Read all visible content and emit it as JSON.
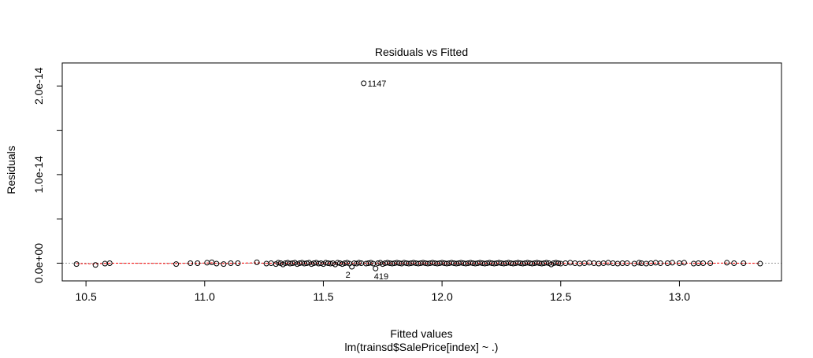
{
  "colors": {
    "points": "#000000",
    "smooth_line": "#ff0000",
    "reference_line": "#999999",
    "axes": "#000000",
    "background": "#ffffff"
  },
  "chart_data": {
    "type": "scatter",
    "title": "Residuals vs Fitted",
    "xlabel": "Fitted values",
    "subtitle": "lm(trainsd$SalePrice[index] ~ .)",
    "ylabel": "Residuals",
    "xlim": [
      10.4,
      13.43
    ],
    "ylim": [
      -2e-15,
      2.26e-14
    ],
    "x_ticks": [
      10.5,
      11.0,
      11.5,
      12.0,
      12.5,
      13.0
    ],
    "x_tick_labels": [
      "10.5",
      "11.0",
      "11.5",
      "12.0",
      "12.5",
      "13.0"
    ],
    "y_ticks": [
      0,
      5e-15,
      1e-14,
      1.5e-14,
      2e-14
    ],
    "y_tick_labels": [
      "0.0e+00",
      "",
      "1.0e-14",
      "",
      "2.0e-14"
    ],
    "grid": false,
    "legend": "none",
    "reference_line_y": 0,
    "outliers": [
      {
        "label": "1147",
        "x": 11.67,
        "y": 2.03e-14
      },
      {
        "label": "2",
        "x": 11.62,
        "y": -4e-16
      },
      {
        "label": "419",
        "x": 11.72,
        "y": -6e-16
      }
    ],
    "series": [
      {
        "points": [
          [
            10.46,
            -1e-16
          ],
          [
            10.54,
            -2e-16
          ],
          [
            10.58,
            -5e-17
          ],
          [
            10.6,
            0
          ],
          [
            10.88,
            -1e-16
          ],
          [
            10.94,
            0
          ],
          [
            10.97,
            0
          ],
          [
            11.01,
            5e-17
          ],
          [
            11.03,
            1e-16
          ],
          [
            11.05,
            -5e-17
          ],
          [
            11.08,
            -1e-16
          ],
          [
            11.11,
            0
          ],
          [
            11.14,
            0
          ],
          [
            11.22,
            1e-16
          ],
          [
            11.26,
            -5e-17
          ],
          [
            11.28,
            0
          ],
          [
            11.3,
            -1e-16
          ],
          [
            11.31,
            5e-17
          ],
          [
            11.32,
            0
          ],
          [
            11.33,
            -1.5e-16
          ],
          [
            11.34,
            0
          ],
          [
            11.35,
            5e-17
          ],
          [
            11.36,
            -5e-17
          ],
          [
            11.37,
            0
          ],
          [
            11.38,
            5e-17
          ],
          [
            11.39,
            -1e-16
          ],
          [
            11.4,
            0
          ],
          [
            11.41,
            5e-17
          ],
          [
            11.42,
            -5e-17
          ],
          [
            11.43,
            0
          ],
          [
            11.44,
            5e-17
          ],
          [
            11.45,
            -1e-16
          ],
          [
            11.46,
            0
          ],
          [
            11.47,
            5e-17
          ],
          [
            11.48,
            -5e-17
          ],
          [
            11.49,
            0
          ],
          [
            11.5,
            -1e-16
          ],
          [
            11.51,
            5e-17
          ],
          [
            11.52,
            0
          ],
          [
            11.53,
            -5e-17
          ],
          [
            11.54,
            0
          ],
          [
            11.55,
            -1.5e-16
          ],
          [
            11.56,
            5e-17
          ],
          [
            11.57,
            0
          ],
          [
            11.58,
            -1e-16
          ],
          [
            11.59,
            0
          ],
          [
            11.6,
            5e-17
          ],
          [
            11.61,
            -5e-17
          ],
          [
            11.63,
            0
          ],
          [
            11.64,
            -5e-17
          ],
          [
            11.65,
            5e-17
          ],
          [
            11.66,
            0
          ],
          [
            11.68,
            -5e-17
          ],
          [
            11.69,
            0
          ],
          [
            11.7,
            5e-17
          ],
          [
            11.71,
            -5e-17
          ],
          [
            11.73,
            0
          ],
          [
            11.74,
            5e-17
          ],
          [
            11.75,
            -1e-16
          ],
          [
            11.76,
            0
          ],
          [
            11.77,
            5e-17
          ],
          [
            11.78,
            0
          ],
          [
            11.79,
            -5e-17
          ],
          [
            11.8,
            0
          ],
          [
            11.81,
            5e-17
          ],
          [
            11.82,
            0
          ],
          [
            11.83,
            -5e-17
          ],
          [
            11.84,
            5e-17
          ],
          [
            11.85,
            0
          ],
          [
            11.86,
            -5e-17
          ],
          [
            11.87,
            0
          ],
          [
            11.88,
            5e-17
          ],
          [
            11.89,
            0
          ],
          [
            11.9,
            -5e-17
          ],
          [
            11.91,
            0
          ],
          [
            11.92,
            5e-17
          ],
          [
            11.93,
            0
          ],
          [
            11.94,
            -5e-17
          ],
          [
            11.95,
            0
          ],
          [
            11.96,
            5e-17
          ],
          [
            11.97,
            0
          ],
          [
            11.98,
            -5e-17
          ],
          [
            11.99,
            0
          ],
          [
            12.0,
            5e-17
          ],
          [
            12.01,
            0
          ],
          [
            12.02,
            -5e-17
          ],
          [
            12.03,
            0
          ],
          [
            12.04,
            5e-17
          ],
          [
            12.05,
            0
          ],
          [
            12.06,
            -5e-17
          ],
          [
            12.07,
            0
          ],
          [
            12.08,
            5e-17
          ],
          [
            12.09,
            0
          ],
          [
            12.1,
            -5e-17
          ],
          [
            12.11,
            0
          ],
          [
            12.12,
            5e-17
          ],
          [
            12.13,
            0
          ],
          [
            12.14,
            -5e-17
          ],
          [
            12.15,
            0
          ],
          [
            12.16,
            5e-17
          ],
          [
            12.17,
            0
          ],
          [
            12.18,
            -5e-17
          ],
          [
            12.19,
            0
          ],
          [
            12.2,
            5e-17
          ],
          [
            12.21,
            0
          ],
          [
            12.22,
            -5e-17
          ],
          [
            12.23,
            0
          ],
          [
            12.24,
            5e-17
          ],
          [
            12.25,
            0
          ],
          [
            12.26,
            -5e-17
          ],
          [
            12.27,
            0
          ],
          [
            12.28,
            5e-17
          ],
          [
            12.29,
            0
          ],
          [
            12.3,
            -5e-17
          ],
          [
            12.31,
            0
          ],
          [
            12.32,
            5e-17
          ],
          [
            12.33,
            0
          ],
          [
            12.34,
            -5e-17
          ],
          [
            12.35,
            0
          ],
          [
            12.36,
            5e-17
          ],
          [
            12.37,
            0
          ],
          [
            12.38,
            -5e-17
          ],
          [
            12.39,
            0
          ],
          [
            12.4,
            5e-17
          ],
          [
            12.41,
            0
          ],
          [
            12.42,
            -5e-17
          ],
          [
            12.43,
            0
          ],
          [
            12.44,
            5e-17
          ],
          [
            12.45,
            0
          ],
          [
            12.46,
            -1.5e-16
          ],
          [
            12.47,
            0
          ],
          [
            12.48,
            5e-17
          ],
          [
            12.49,
            0
          ],
          [
            12.5,
            -5e-17
          ],
          [
            12.52,
            0
          ],
          [
            12.54,
            5e-17
          ],
          [
            12.56,
            0
          ],
          [
            12.58,
            -5e-17
          ],
          [
            12.6,
            0
          ],
          [
            12.62,
            5e-17
          ],
          [
            12.64,
            0
          ],
          [
            12.66,
            -5e-17
          ],
          [
            12.68,
            0
          ],
          [
            12.7,
            5e-17
          ],
          [
            12.72,
            0
          ],
          [
            12.74,
            -5e-17
          ],
          [
            12.76,
            0
          ],
          [
            12.78,
            0
          ],
          [
            12.81,
            -5e-17
          ],
          [
            12.83,
            5e-17
          ],
          [
            12.84,
            0
          ],
          [
            12.86,
            -5e-17
          ],
          [
            12.88,
            0
          ],
          [
            12.9,
            5e-17
          ],
          [
            12.92,
            0
          ],
          [
            12.95,
            0
          ],
          [
            12.97,
            5e-17
          ],
          [
            13.0,
            0
          ],
          [
            13.02,
            5e-17
          ],
          [
            13.06,
            -5e-17
          ],
          [
            13.08,
            0
          ],
          [
            13.1,
            0
          ],
          [
            13.13,
            0
          ],
          [
            13.2,
            5e-17
          ],
          [
            13.23,
            0
          ],
          [
            13.27,
            0
          ],
          [
            13.34,
            -5e-17
          ]
        ]
      }
    ]
  }
}
